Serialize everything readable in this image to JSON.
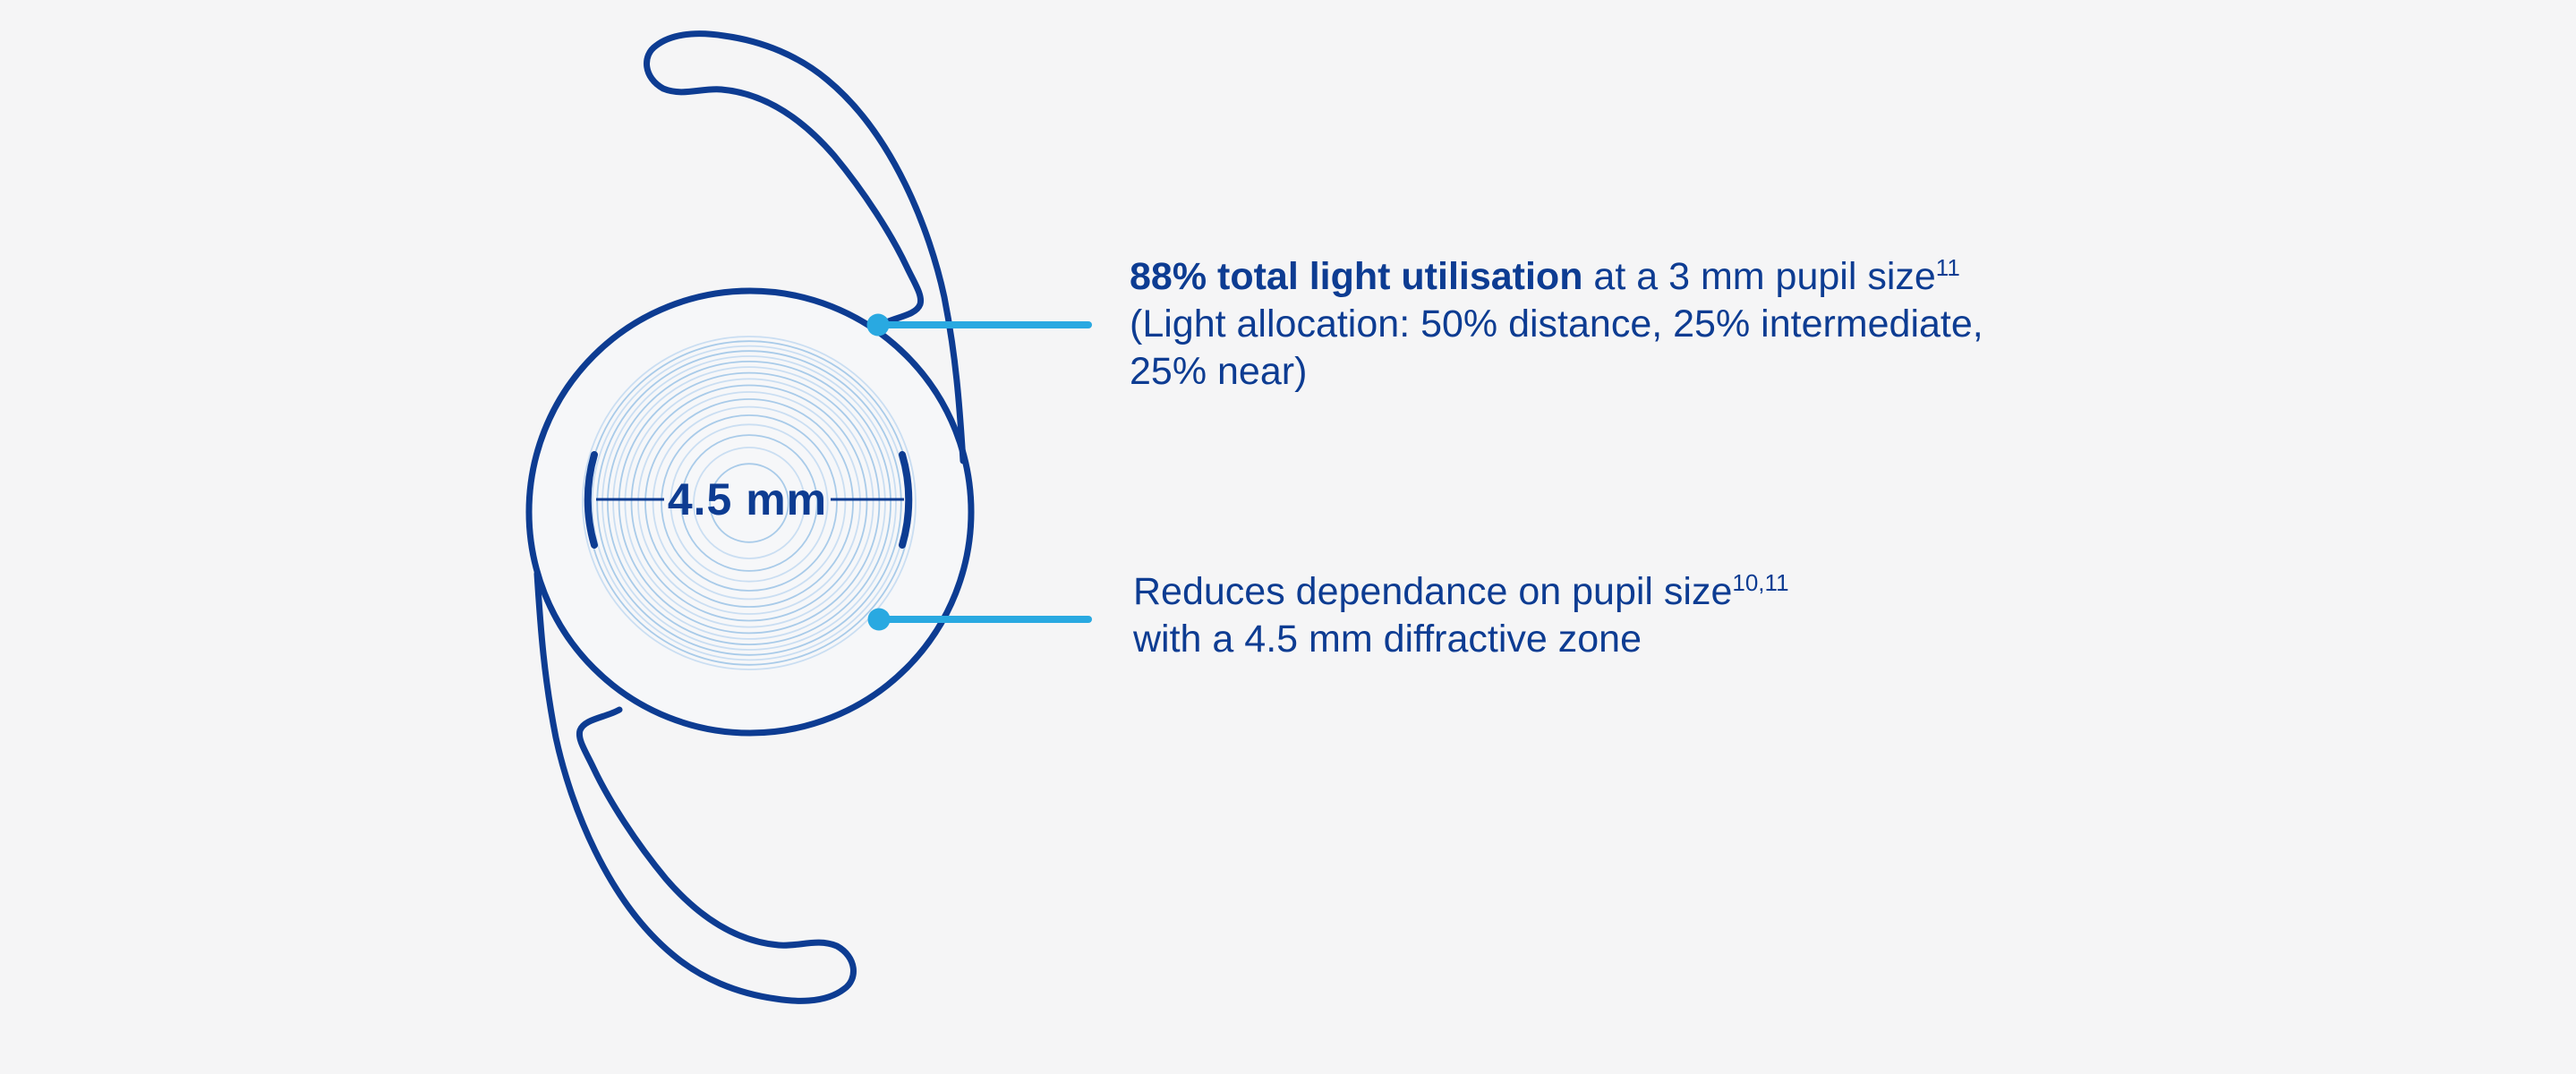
{
  "diagram": {
    "diameter_label": "4.5 mm",
    "rings_count": 18,
    "colors": {
      "dark_blue": "#0d3c92",
      "accent_cyan": "#29a9e1",
      "ring_blue": "#a9cbe9",
      "ring_blue_light": "#cadef2",
      "background": "#f5f5f6"
    }
  },
  "annotations": {
    "light_utilisation": {
      "bold": "88% total light utilisation",
      "rest": " at a 3 mm pupil size",
      "sup": "11",
      "line2": "(Light allocation: 50% distance, 25% intermediate,",
      "line3": "25% near)"
    },
    "pupil_dependence": {
      "line1": "Reduces dependance on pupil size",
      "sup": "10,11",
      "line2": "with a 4.5 mm diffractive zone"
    }
  }
}
